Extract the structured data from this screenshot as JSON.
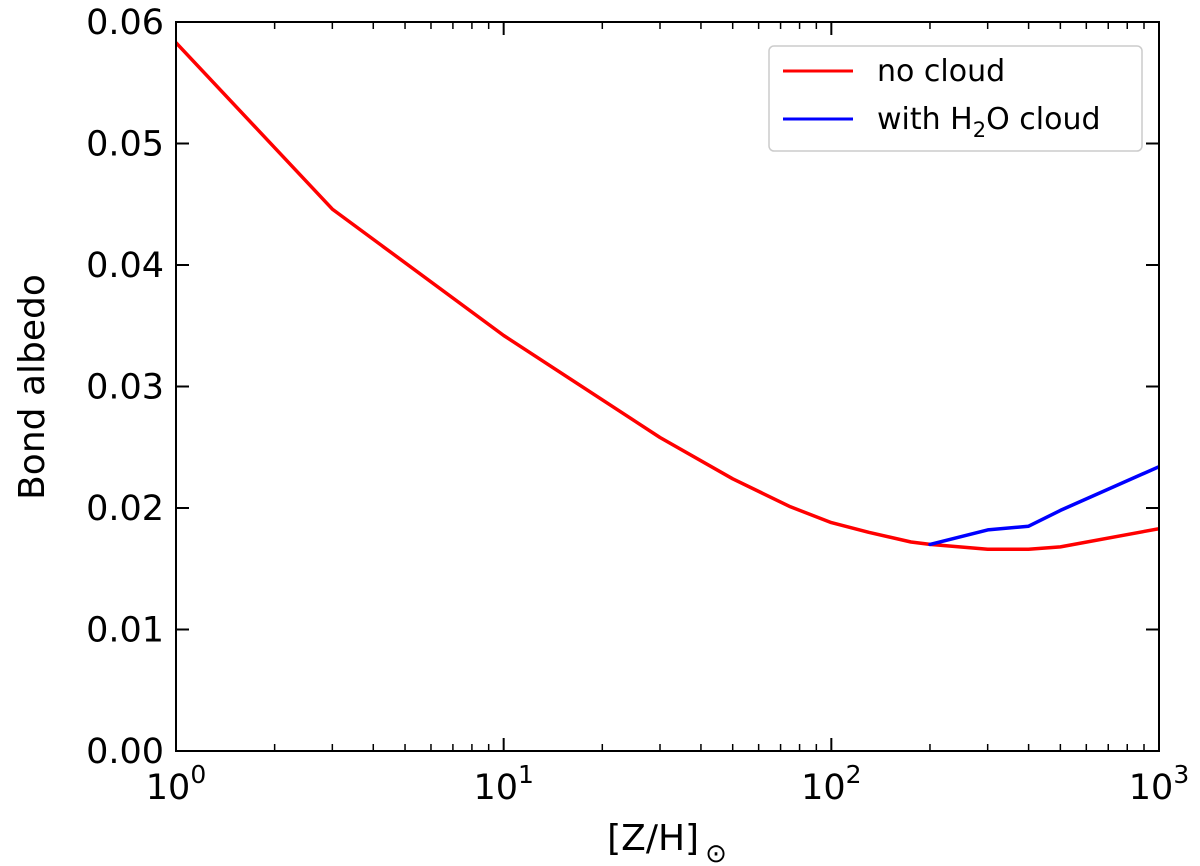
{
  "chart_data": {
    "type": "line",
    "xscale": "log",
    "xlim": [
      1,
      1000
    ],
    "ylim": [
      0,
      0.06
    ],
    "xlabel": "[Z/H]",
    "xlabel_subscript": "⊙",
    "ylabel": "Bond albedo",
    "x_tick_labels": [
      {
        "base": "10",
        "exp": "0"
      },
      {
        "base": "10",
        "exp": "1"
      },
      {
        "base": "10",
        "exp": "2"
      },
      {
        "base": "10",
        "exp": "3"
      }
    ],
    "y_ticks": [
      0,
      0.01,
      0.02,
      0.03,
      0.04,
      0.05,
      0.06
    ],
    "y_tick_labels": [
      "0.00",
      "0.01",
      "0.02",
      "0.03",
      "0.04",
      "0.05",
      "0.06"
    ],
    "legend_position": "top-right",
    "series": [
      {
        "name": "no cloud",
        "color": "#ff0000",
        "x": [
          1,
          3,
          10,
          30,
          50,
          75,
          100,
          130,
          175,
          200,
          300,
          400,
          500,
          1000
        ],
        "y": [
          0.0583,
          0.0446,
          0.0342,
          0.0258,
          0.0224,
          0.0201,
          0.0188,
          0.018,
          0.0172,
          0.017,
          0.0166,
          0.0166,
          0.0168,
          0.0183
        ]
      },
      {
        "name": "with H₂O cloud",
        "name_parts": [
          "with H",
          "2",
          "O cloud"
        ],
        "color": "#0000ff",
        "x": [
          200,
          300,
          400,
          500,
          1000
        ],
        "y": [
          0.017,
          0.0182,
          0.0185,
          0.0198,
          0.0234
        ]
      }
    ]
  }
}
